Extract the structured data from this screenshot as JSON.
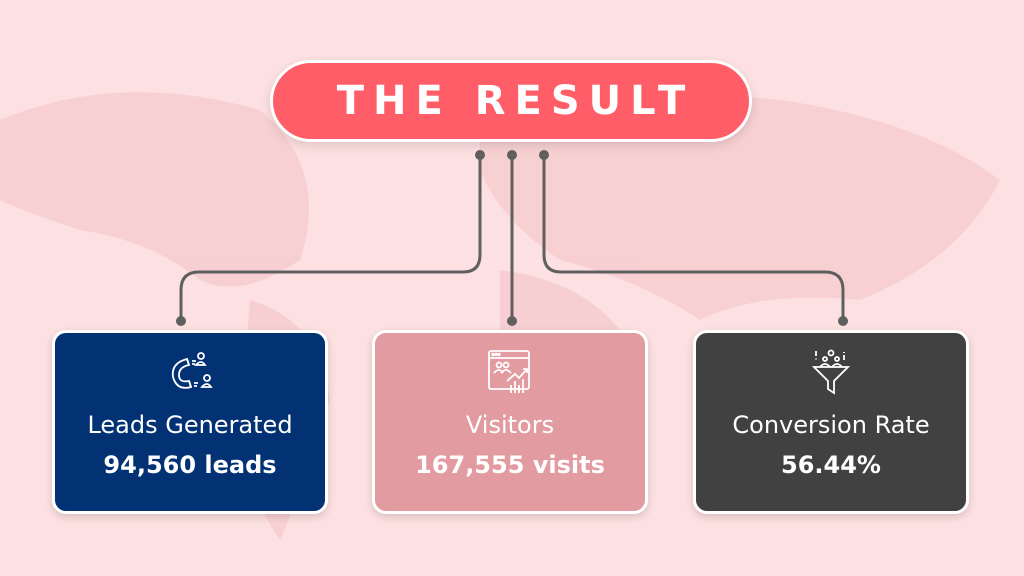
{
  "title": "THE RESULT",
  "colors": {
    "background": "#fde0e1",
    "title_pill": "#ff5d67",
    "connector": "#5f5f5f"
  },
  "cards": [
    {
      "label": "Leads Generated",
      "value": "94,560 leads",
      "icon": "magnet-attracting-people-icon",
      "color": "#023174"
    },
    {
      "label": "Visitors",
      "value": "167,555 visits",
      "icon": "web-analytics-visitors-icon",
      "color": "#e29ba0"
    },
    {
      "label": "Conversion Rate",
      "value": "56.44%",
      "icon": "conversion-funnel-icon",
      "color": "#414141"
    }
  ]
}
